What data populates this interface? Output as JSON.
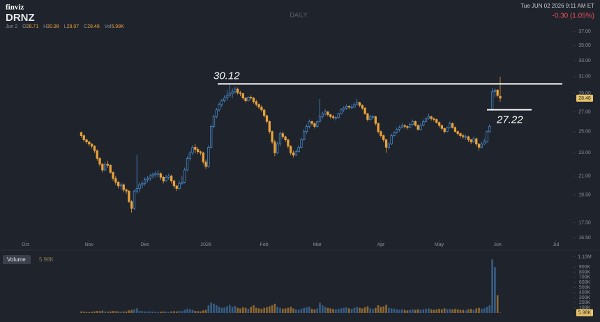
{
  "header": {
    "logo": "finviz",
    "ticker": "DRNZ",
    "interval": "DAILY",
    "datetime": "Tue JUN 02 2026 9:11 AM ET",
    "change": "-0.30 (1.05%)"
  },
  "legend": {
    "date": "Jun 2",
    "items": [
      {
        "label": "O",
        "value": 28.71
      },
      {
        "label": "H",
        "value": 30.98
      },
      {
        "label": "L",
        "value": 28.07
      },
      {
        "label": "C",
        "value": 28.48
      },
      {
        "label": "Vol",
        "value": "5.98K"
      }
    ]
  },
  "chart_data": [
    {
      "type": "candlestick",
      "log_scale": true,
      "up_color": "#4a90d0",
      "down_color": "#e9a23b",
      "xlim": [
        -28,
        183
      ],
      "ylim": [
        16.5,
        37
      ],
      "xticks": [
        {
          "value": -21,
          "label": "Oct"
        },
        {
          "value": 3,
          "label": "Nov"
        },
        {
          "value": 24,
          "label": "Dec"
        },
        {
          "value": 47,
          "label": "2026"
        },
        {
          "value": 69,
          "label": "Feb"
        },
        {
          "value": 89,
          "label": "Mar"
        },
        {
          "value": 113,
          "label": "Apr"
        },
        {
          "value": 135,
          "label": "May"
        },
        {
          "value": 157,
          "label": "Jun"
        },
        {
          "value": 179,
          "label": "Jul"
        }
      ],
      "yticks": [
        {
          "value": 37,
          "label": "37.00"
        },
        {
          "value": 35,
          "label": "35.00"
        },
        {
          "value": 33,
          "label": "33.00"
        },
        {
          "value": 31,
          "label": "31.00"
        },
        {
          "value": 29,
          "label": "29.00"
        },
        {
          "value": 27,
          "label": "27.00"
        },
        {
          "value": 25,
          "label": "25.00"
        },
        {
          "value": 23,
          "label": "23.00"
        },
        {
          "value": 21,
          "label": "21.00"
        },
        {
          "value": 19.5,
          "label": "19.50"
        },
        {
          "value": 17.5,
          "label": "17.50"
        },
        {
          "value": 16.5,
          "label": "16.50"
        }
      ],
      "last_price": {
        "value": 28.48,
        "label": "28.48"
      },
      "annotations": [
        {
          "value": 30.12,
          "label": "30.12"
        },
        {
          "value": 27.22,
          "label": "27.22"
        }
      ],
      "open": [
        24.9,
        24.6,
        24.2,
        24.0,
        23.8,
        23.6,
        23.2,
        22.5,
        22.0,
        21.5,
        22.0,
        21.9,
        21.3,
        20.8,
        20.5,
        20.2,
        20.3,
        19.9,
        19.8,
        19.0,
        18.5,
        19.8,
        20.0,
        20.3,
        20.4,
        20.7,
        20.8,
        21.0,
        21.1,
        21.2,
        21.2,
        20.9,
        20.6,
        20.9,
        21.0,
        20.6,
        20.2,
        20.0,
        20.4,
        20.5,
        21.5,
        22.5,
        23.0,
        23.5,
        23.3,
        23.1,
        23.0,
        22.2,
        21.8,
        23.5,
        25.5,
        26.5,
        27.2,
        27.8,
        28.2,
        28.5,
        28.8,
        29.0,
        29.2,
        29.5,
        29.1,
        29.0,
        28.5,
        28.2,
        28.6,
        28.5,
        28.1,
        27.8,
        27.5,
        27.2,
        26.6,
        26.0,
        25.0,
        24.0,
        23.0,
        23.8,
        24.8,
        24.5,
        24.2,
        23.6,
        23.0,
        22.8,
        23.1,
        23.5,
        24.2,
        25.0,
        25.5,
        26.0,
        25.8,
        25.5,
        26.0,
        26.5,
        26.8,
        27.0,
        26.7,
        26.5,
        26.4,
        26.4,
        26.8,
        27.2,
        27.4,
        27.6,
        27.5,
        27.5,
        27.8,
        28.0,
        27.7,
        27.4,
        26.8,
        26.2,
        26.5,
        26.5,
        25.8,
        25.0,
        24.6,
        24.2,
        23.5,
        23.8,
        24.6,
        24.9,
        25.2,
        25.4,
        25.6,
        25.5,
        25.4,
        25.7,
        26.0,
        25.6,
        25.2,
        25.6,
        26.0,
        26.3,
        26.5,
        26.3,
        26.2,
        25.9,
        25.6,
        25.3,
        25.0,
        25.4,
        25.8,
        25.4,
        25.0,
        24.8,
        24.6,
        24.5,
        24.5,
        24.2,
        24.0,
        24.3,
        23.8,
        23.5,
        23.8,
        24.0,
        25.0,
        27.22,
        29.2,
        29.4,
        28.71
      ],
      "high": [
        25.0,
        24.7,
        24.3,
        24.1,
        23.9,
        23.7,
        23.3,
        22.6,
        22.1,
        22.2,
        22.3,
        22.0,
        21.4,
        21.0,
        20.6,
        20.5,
        20.4,
        20.0,
        19.9,
        19.1,
        19.9,
        22.8,
        20.5,
        20.6,
        20.9,
        21.0,
        21.2,
        21.3,
        21.4,
        21.5,
        21.3,
        21.0,
        21.1,
        21.2,
        21.1,
        20.7,
        20.3,
        20.6,
        21.0,
        21.7,
        22.7,
        23.2,
        23.7,
        23.8,
        23.5,
        23.2,
        23.1,
        22.4,
        23.7,
        25.7,
        26.7,
        27.4,
        28.0,
        28.4,
        28.8,
        29.4,
        30.12,
        29.6,
        29.8,
        29.7,
        29.3,
        29.1,
        28.6,
        28.7,
        28.8,
        28.6,
        28.3,
        27.9,
        27.7,
        27.3,
        26.7,
        26.1,
        25.1,
        24.2,
        24.0,
        25.0,
        25.0,
        24.6,
        24.3,
        23.7,
        23.2,
        23.3,
        23.7,
        24.4,
        25.2,
        25.7,
        26.2,
        26.1,
        25.9,
        26.1,
        28.4,
        27.0,
        27.3,
        27.1,
        26.8,
        26.7,
        26.6,
        26.9,
        27.4,
        27.6,
        27.8,
        27.7,
        27.8,
        28.0,
        28.4,
        28.1,
        27.8,
        27.5,
        26.9,
        26.7,
        26.7,
        26.6,
        25.9,
        25.1,
        24.7,
        24.3,
        24.0,
        24.8,
        25.0,
        25.4,
        25.6,
        25.8,
        25.7,
        25.6,
        25.9,
        26.2,
        26.1,
        25.7,
        25.8,
        26.2,
        26.4,
        26.8,
        26.6,
        26.4,
        26.3,
        26.0,
        25.7,
        25.4,
        25.5,
        26.0,
        25.9,
        25.5,
        25.1,
        24.9,
        24.8,
        24.7,
        24.6,
        24.3,
        24.5,
        24.4,
        23.9,
        24.0,
        24.3,
        25.1,
        25.7,
        29.6,
        29.6,
        29.5,
        30.98
      ],
      "low": [
        24.4,
        24.0,
        23.8,
        23.6,
        23.4,
        23.0,
        22.3,
        21.8,
        21.3,
        21.4,
        21.7,
        21.2,
        20.6,
        20.3,
        20.0,
        19.9,
        19.7,
        19.6,
        18.9,
        18.2,
        18.4,
        19.6,
        19.7,
        20.0,
        20.2,
        20.5,
        20.6,
        20.8,
        20.9,
        20.9,
        20.7,
        20.4,
        20.5,
        20.7,
        20.4,
        20.0,
        19.8,
        19.9,
        20.3,
        20.4,
        21.4,
        22.3,
        22.8,
        23.0,
        22.9,
        22.8,
        22.0,
        21.6,
        21.7,
        23.4,
        25.3,
        26.3,
        27.0,
        27.5,
        28.0,
        28.2,
        28.6,
        28.5,
        29.0,
        28.9,
        28.7,
        28.3,
        28.0,
        28.1,
        28.3,
        27.9,
        27.6,
        27.3,
        27.0,
        26.4,
        25.8,
        24.8,
        23.8,
        22.7,
        22.9,
        23.6,
        24.3,
        24.0,
        23.4,
        22.8,
        22.6,
        22.7,
        23.0,
        23.4,
        24.1,
        24.8,
        25.3,
        25.6,
        25.3,
        25.4,
        25.9,
        26.3,
        26.6,
        26.5,
        26.3,
        26.2,
        26.1,
        26.3,
        26.7,
        27.0,
        27.2,
        27.3,
        27.3,
        27.4,
        27.7,
        27.5,
        27.2,
        26.7,
        26.0,
        26.1,
        26.2,
        25.6,
        24.8,
        24.4,
        24.0,
        23.0,
        23.3,
        23.7,
        24.5,
        24.8,
        25.0,
        25.3,
        25.3,
        25.2,
        25.3,
        25.6,
        25.5,
        25.1,
        25.1,
        25.5,
        25.9,
        26.2,
        26.1,
        26.0,
        25.8,
        25.4,
        25.1,
        24.8,
        24.9,
        25.3,
        25.3,
        24.9,
        24.6,
        24.4,
        24.3,
        24.2,
        24.0,
        23.8,
        23.9,
        23.6,
        23.2,
        23.4,
        23.7,
        23.9,
        24.9,
        27.1,
        28.6,
        28.6,
        28.07
      ],
      "close": [
        24.6,
        24.2,
        24.0,
        23.8,
        23.6,
        23.2,
        22.5,
        22.0,
        21.5,
        22.0,
        21.9,
        21.3,
        20.8,
        20.5,
        20.2,
        20.3,
        19.9,
        19.8,
        19.0,
        18.5,
        19.8,
        20.0,
        20.3,
        20.4,
        20.7,
        20.8,
        21.0,
        21.1,
        21.2,
        21.2,
        20.9,
        20.6,
        20.9,
        21.0,
        20.6,
        20.2,
        20.0,
        20.4,
        20.5,
        21.5,
        22.5,
        23.0,
        23.5,
        23.3,
        23.1,
        23.0,
        22.2,
        21.8,
        23.5,
        25.5,
        26.5,
        27.2,
        27.8,
        28.2,
        28.5,
        28.8,
        29.0,
        29.2,
        29.5,
        29.1,
        29.0,
        28.5,
        28.2,
        28.6,
        28.5,
        28.1,
        27.8,
        27.5,
        27.2,
        26.6,
        26.0,
        25.0,
        24.0,
        23.0,
        23.8,
        24.8,
        24.5,
        24.2,
        23.6,
        23.0,
        22.8,
        23.1,
        23.5,
        24.2,
        25.0,
        25.5,
        26.0,
        25.8,
        25.5,
        26.0,
        26.5,
        26.8,
        27.0,
        26.7,
        26.5,
        26.4,
        26.4,
        26.8,
        27.2,
        27.4,
        27.6,
        27.5,
        27.5,
        27.8,
        28.0,
        27.7,
        27.4,
        26.8,
        26.2,
        26.5,
        26.5,
        25.8,
        25.0,
        24.6,
        24.2,
        23.5,
        23.8,
        24.6,
        24.9,
        25.2,
        25.4,
        25.6,
        25.5,
        25.4,
        25.7,
        26.0,
        25.6,
        25.2,
        25.6,
        26.0,
        26.3,
        26.5,
        26.3,
        26.2,
        25.9,
        25.6,
        25.3,
        25.0,
        25.4,
        25.8,
        25.4,
        25.0,
        24.8,
        24.6,
        24.5,
        24.5,
        24.2,
        24.0,
        24.3,
        23.8,
        23.5,
        23.8,
        24.0,
        25.0,
        25.5,
        29.2,
        29.4,
        28.78,
        28.48
      ]
    },
    {
      "type": "bar",
      "title": "Volume",
      "value_label": "5.98K",
      "ylim": [
        0,
        1190000
      ],
      "yticks": [
        {
          "value": 1100000,
          "label": "1.10M"
        },
        {
          "value": 900000,
          "label": "900K"
        },
        {
          "value": 800000,
          "label": "800K"
        },
        {
          "value": 700000,
          "label": "700K"
        },
        {
          "value": 600000,
          "label": "600K"
        },
        {
          "value": 500000,
          "label": "500K"
        },
        {
          "value": 400000,
          "label": "400K"
        },
        {
          "value": 300000,
          "label": "300K"
        },
        {
          "value": 200000,
          "label": "200K"
        },
        {
          "value": 100000,
          "label": "100K"
        }
      ],
      "values": [
        30000,
        25000,
        20000,
        18000,
        22000,
        30000,
        40000,
        35000,
        45000,
        30000,
        25000,
        30000,
        40000,
        35000,
        30000,
        25000,
        30000,
        28000,
        50000,
        60000,
        70000,
        90000,
        40000,
        35000,
        30000,
        28000,
        30000,
        25000,
        22000,
        20000,
        25000,
        30000,
        25000,
        20000,
        30000,
        35000,
        30000,
        40000,
        35000,
        60000,
        80000,
        70000,
        60000,
        40000,
        35000,
        30000,
        50000,
        60000,
        150000,
        200000,
        180000,
        150000,
        120000,
        100000,
        110000,
        130000,
        160000,
        120000,
        140000,
        100000,
        90000,
        110000,
        100000,
        80000,
        120000,
        150000,
        100000,
        90000,
        80000,
        100000,
        110000,
        130000,
        150000,
        180000,
        120000,
        100000,
        80000,
        90000,
        100000,
        120000,
        90000,
        70000,
        60000,
        80000,
        100000,
        110000,
        120000,
        80000,
        70000,
        90000,
        200000,
        150000,
        120000,
        100000,
        90000,
        80000,
        70000,
        80000,
        90000,
        100000,
        110000,
        90000,
        80000,
        100000,
        120000,
        100000,
        90000,
        110000,
        130000,
        90000,
        80000,
        100000,
        150000,
        120000,
        130000,
        160000,
        100000,
        90000,
        80000,
        70000,
        60000,
        70000,
        60000,
        50000,
        60000,
        70000,
        60000,
        70000,
        60000,
        70000,
        80000,
        90000,
        70000,
        60000,
        70000,
        80000,
        70000,
        90000,
        70000,
        80000,
        70000,
        80000,
        70000,
        60000,
        60000,
        50000,
        70000,
        80000,
        60000,
        90000,
        100000,
        80000,
        90000,
        120000,
        150000,
        1050000,
        900000,
        350000,
        5980
      ]
    }
  ]
}
